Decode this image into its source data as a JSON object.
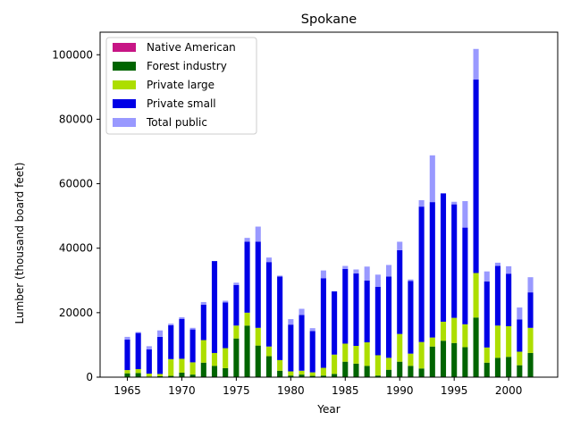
{
  "chart_data": {
    "type": "bar",
    "stacked": true,
    "title": "Spokane",
    "xlabel": "Year",
    "ylabel": "Lumber (thousand board feet)",
    "xlim": [
      1962.5,
      2004.5
    ],
    "ylim": [
      0,
      107000
    ],
    "xticks": [
      1965,
      1970,
      1975,
      1980,
      1985,
      1990,
      1995,
      2000
    ],
    "yticks": [
      0,
      20000,
      40000,
      60000,
      80000,
      100000
    ],
    "legend_position": "top-left",
    "x": [
      1965,
      1966,
      1967,
      1968,
      1969,
      1970,
      1971,
      1972,
      1973,
      1974,
      1975,
      1976,
      1977,
      1978,
      1979,
      1980,
      1981,
      1982,
      1983,
      1984,
      1985,
      1986,
      1987,
      1988,
      1989,
      1990,
      1991,
      1992,
      1993,
      1994,
      1995,
      1996,
      1997,
      1998,
      1999,
      2000,
      2001,
      2002
    ],
    "series": [
      {
        "name": "Native American",
        "color": "#c71585",
        "values": [
          0,
          0,
          0,
          0,
          0,
          0,
          0,
          0,
          0,
          0,
          0,
          0,
          0,
          0,
          0,
          0,
          0,
          0,
          0,
          0,
          0,
          0,
          0,
          0,
          0,
          0,
          0,
          0,
          0,
          0,
          0,
          0,
          0,
          0,
          0,
          0,
          0,
          0
        ]
      },
      {
        "name": "Forest industry",
        "color": "#006400",
        "values": [
          1200,
          1300,
          200,
          300,
          400,
          1400,
          800,
          4500,
          3500,
          2800,
          12000,
          16000,
          9800,
          6500,
          2000,
          500,
          800,
          400,
          500,
          1000,
          4800,
          4200,
          3500,
          500,
          2300,
          4800,
          3500,
          2700,
          9500,
          11300,
          10600,
          9300,
          18500,
          4500,
          6000,
          6300,
          3700,
          7500
        ]
      },
      {
        "name": "Private large",
        "color": "#adde00",
        "values": [
          1000,
          1200,
          900,
          700,
          5200,
          4300,
          3800,
          7000,
          4000,
          6200,
          4000,
          4000,
          5500,
          3000,
          3300,
          1300,
          1200,
          1100,
          2400,
          6000,
          5600,
          5500,
          7300,
          6300,
          3700,
          8600,
          3800,
          8200,
          2800,
          5900,
          7800,
          7100,
          13800,
          4700,
          10000,
          9500,
          4200,
          7800
        ]
      },
      {
        "name": "Private small",
        "color": "#0000e6",
        "values": [
          9500,
          11200,
          7500,
          11500,
          10500,
          12400,
          10200,
          11000,
          28500,
          14200,
          12600,
          22000,
          26700,
          26200,
          25900,
          14500,
          17300,
          12800,
          27800,
          19600,
          23200,
          22500,
          19200,
          21200,
          25200,
          26000,
          22500,
          42000,
          42000,
          39800,
          35200,
          30000,
          60000,
          20500,
          18500,
          16300,
          10000,
          11000
        ]
      },
      {
        "name": "Total public",
        "color": "#9999ff",
        "values": [
          800,
          300,
          1000,
          2000,
          500,
          500,
          500,
          800,
          0,
          500,
          700,
          1200,
          4700,
          1400,
          300,
          1700,
          1900,
          900,
          2400,
          0,
          900,
          1200,
          4300,
          3800,
          3600,
          2600,
          500,
          2000,
          14500,
          0,
          800,
          8200,
          9500,
          3100,
          1000,
          2300,
          3700,
          4700
        ]
      }
    ]
  }
}
